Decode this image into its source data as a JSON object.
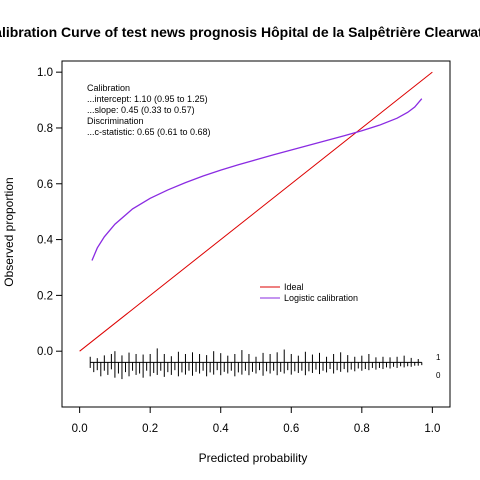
{
  "chart_data": {
    "type": "line",
    "title": "Calibration Curve of test news prognosis Hôpital de la Salpêtrière Clearwater",
    "xlabel": "Predicted probability",
    "ylabel": "Observed proportion",
    "xlim": [
      -0.05,
      1.05
    ],
    "ylim": [
      -0.2,
      1.04
    ],
    "x_ticks": [
      "0.0",
      "0.2",
      "0.4",
      "0.6",
      "0.8",
      "1.0"
    ],
    "y_ticks": [
      "0.0",
      "0.2",
      "0.4",
      "0.6",
      "0.8",
      "1.0"
    ],
    "grid": false,
    "annotation": [
      "Calibration",
      "...intercept: 1.10 (0.95 to 1.25)",
      "...slope: 0.45 (0.33 to 0.57)",
      "Discrimination",
      "...c-statistic: 0.65 (0.61 to 0.68)"
    ],
    "legend": {
      "placement": "center-right",
      "entries": [
        {
          "label": "Ideal",
          "color": "#dd0000"
        },
        {
          "label": "Logistic calibration",
          "color": "#8a2be2"
        }
      ]
    },
    "series": [
      {
        "name": "Ideal",
        "color": "#dd0000",
        "x": [
          0.0,
          1.0
        ],
        "y": [
          0.0,
          1.0
        ]
      },
      {
        "name": "Logistic calibration",
        "color": "#8a2be2",
        "x": [
          0.035,
          0.05,
          0.07,
          0.1,
          0.15,
          0.2,
          0.25,
          0.3,
          0.35,
          0.4,
          0.45,
          0.5,
          0.55,
          0.6,
          0.65,
          0.7,
          0.75,
          0.8,
          0.85,
          0.9,
          0.93,
          0.95,
          0.97
        ],
        "y": [
          0.325,
          0.37,
          0.41,
          0.455,
          0.51,
          0.548,
          0.578,
          0.604,
          0.628,
          0.649,
          0.668,
          0.686,
          0.704,
          0.721,
          0.738,
          0.755,
          0.772,
          0.79,
          0.81,
          0.835,
          0.856,
          0.875,
          0.905
        ]
      }
    ],
    "histogram": {
      "labels": [
        "1",
        "0"
      ],
      "events_x": [
        0.03,
        0.05,
        0.07,
        0.09,
        0.1,
        0.12,
        0.14,
        0.16,
        0.18,
        0.2,
        0.22,
        0.24,
        0.26,
        0.28,
        0.3,
        0.32,
        0.34,
        0.36,
        0.38,
        0.4,
        0.42,
        0.44,
        0.46,
        0.48,
        0.5,
        0.52,
        0.54,
        0.56,
        0.58,
        0.6,
        0.62,
        0.64,
        0.66,
        0.68,
        0.7,
        0.72,
        0.74,
        0.76,
        0.78,
        0.8,
        0.82,
        0.84,
        0.86,
        0.88,
        0.9,
        0.92,
        0.94,
        0.96
      ],
      "events_h": [
        0.02,
        0.015,
        0.025,
        0.03,
        0.04,
        0.025,
        0.035,
        0.03,
        0.028,
        0.03,
        0.05,
        0.03,
        0.022,
        0.038,
        0.03,
        0.036,
        0.03,
        0.026,
        0.04,
        0.033,
        0.024,
        0.03,
        0.044,
        0.03,
        0.02,
        0.034,
        0.03,
        0.036,
        0.046,
        0.03,
        0.024,
        0.038,
        0.028,
        0.034,
        0.02,
        0.03,
        0.036,
        0.026,
        0.02,
        0.024,
        0.03,
        0.018,
        0.02,
        0.018,
        0.02,
        0.024,
        0.016,
        0.012
      ],
      "nonevents_x": [
        0.03,
        0.04,
        0.05,
        0.06,
        0.07,
        0.08,
        0.09,
        0.1,
        0.11,
        0.12,
        0.13,
        0.14,
        0.15,
        0.16,
        0.17,
        0.18,
        0.19,
        0.2,
        0.21,
        0.22,
        0.23,
        0.24,
        0.25,
        0.26,
        0.27,
        0.28,
        0.29,
        0.3,
        0.31,
        0.32,
        0.33,
        0.34,
        0.35,
        0.36,
        0.37,
        0.38,
        0.39,
        0.4,
        0.41,
        0.42,
        0.43,
        0.44,
        0.45,
        0.46,
        0.47,
        0.48,
        0.49,
        0.5,
        0.51,
        0.52,
        0.53,
        0.54,
        0.55,
        0.56,
        0.57,
        0.58,
        0.59,
        0.6,
        0.61,
        0.62,
        0.63,
        0.64,
        0.65,
        0.66,
        0.67,
        0.68,
        0.69,
        0.7,
        0.71,
        0.72,
        0.73,
        0.74,
        0.75,
        0.76,
        0.77,
        0.78,
        0.79,
        0.8,
        0.81,
        0.82,
        0.83,
        0.84,
        0.85,
        0.86,
        0.87,
        0.88,
        0.89,
        0.9,
        0.91,
        0.92,
        0.93,
        0.94,
        0.95,
        0.96,
        0.97
      ],
      "nonevents_h": [
        0.02,
        0.035,
        0.028,
        0.05,
        0.03,
        0.045,
        0.025,
        0.055,
        0.04,
        0.06,
        0.035,
        0.05,
        0.03,
        0.045,
        0.04,
        0.055,
        0.03,
        0.05,
        0.038,
        0.045,
        0.03,
        0.052,
        0.035,
        0.045,
        0.028,
        0.05,
        0.036,
        0.044,
        0.03,
        0.048,
        0.034,
        0.04,
        0.03,
        0.05,
        0.036,
        0.044,
        0.028,
        0.046,
        0.034,
        0.04,
        0.03,
        0.05,
        0.036,
        0.044,
        0.03,
        0.046,
        0.034,
        0.04,
        0.028,
        0.048,
        0.032,
        0.04,
        0.03,
        0.046,
        0.034,
        0.04,
        0.028,
        0.044,
        0.032,
        0.038,
        0.03,
        0.046,
        0.032,
        0.038,
        0.026,
        0.042,
        0.03,
        0.036,
        0.024,
        0.04,
        0.028,
        0.034,
        0.024,
        0.036,
        0.026,
        0.032,
        0.022,
        0.03,
        0.024,
        0.028,
        0.02,
        0.026,
        0.02,
        0.024,
        0.018,
        0.022,
        0.016,
        0.02,
        0.014,
        0.018,
        0.014,
        0.016,
        0.012,
        0.012,
        0.01
      ]
    }
  }
}
